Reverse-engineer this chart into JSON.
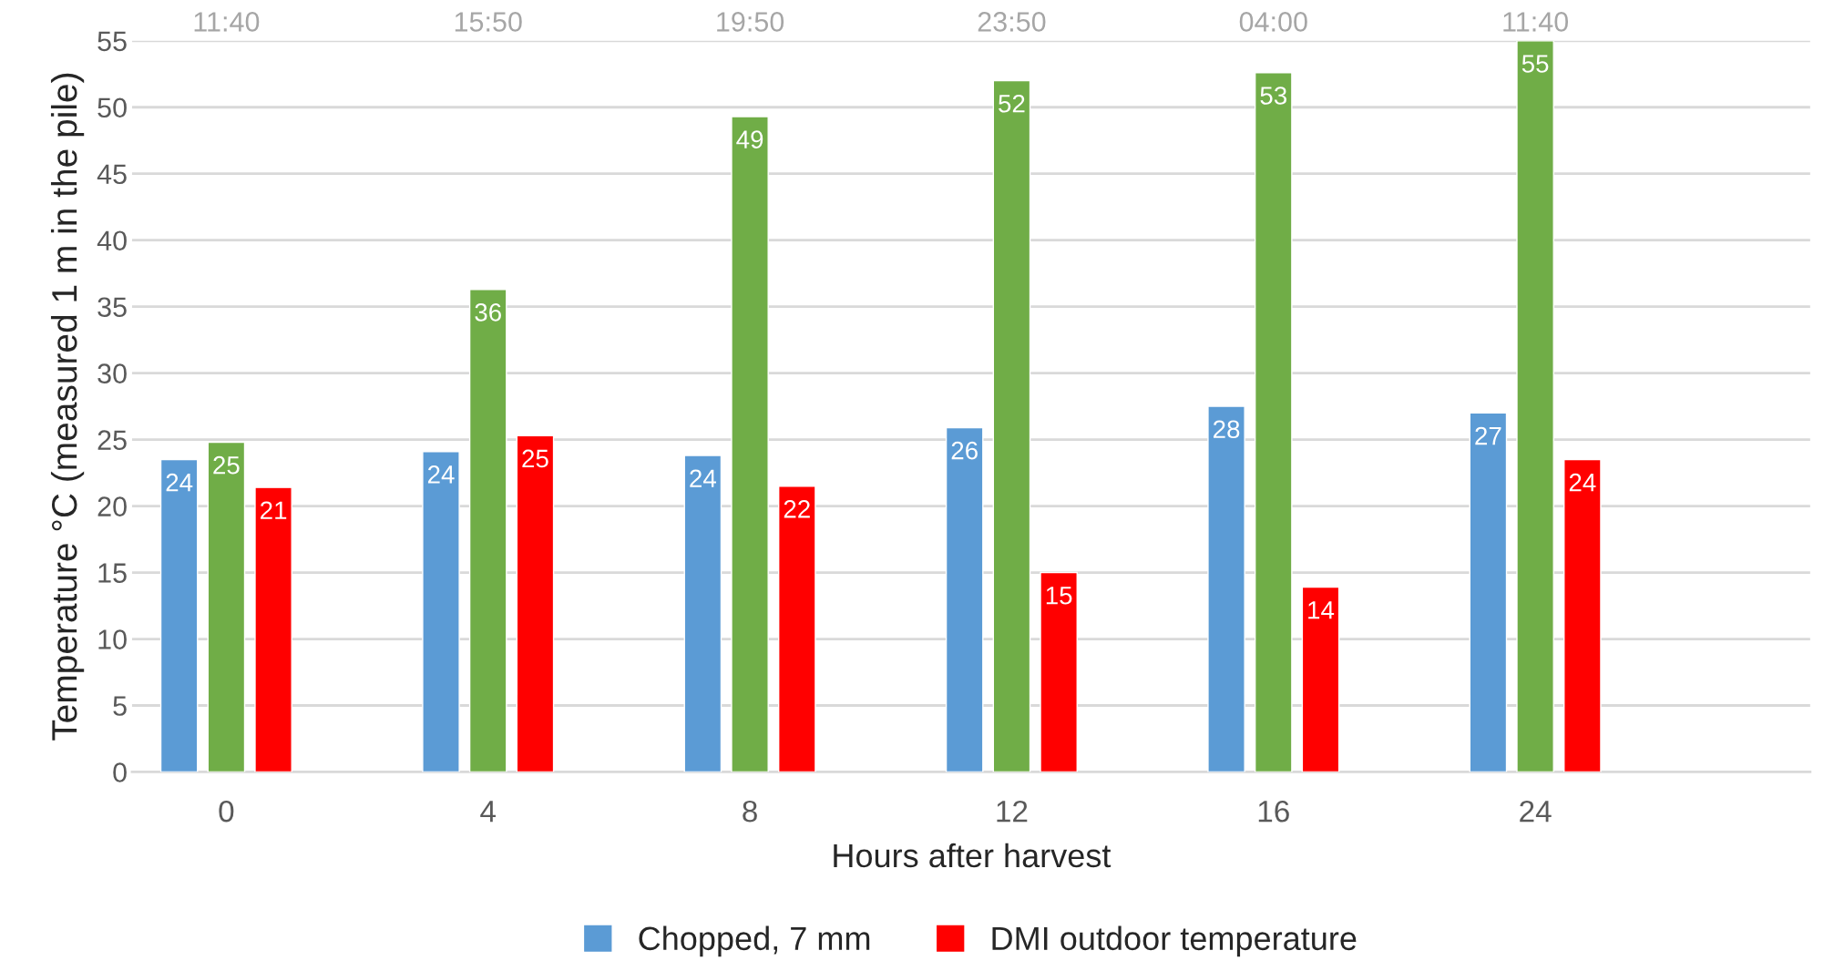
{
  "chart_data": {
    "type": "bar",
    "xlabel": "Hours after harvest",
    "ylabel": "Temperature °C (measured 1 m in the pile)",
    "categories": [
      "0",
      "4",
      "8",
      "12",
      "16",
      "24"
    ],
    "series": [
      {
        "name": "Chopped, 7 mm",
        "color": "#5b9bd5",
        "values": [
          23.5,
          24.1,
          23.8,
          25.9,
          27.5,
          27.0
        ],
        "value_labels": [
          "24",
          "24",
          "24",
          "26",
          "28",
          "27"
        ]
      },
      {
        "color": "#70ad47",
        "values": [
          24.8,
          36.3,
          49.3,
          52.0,
          52.6,
          55.0
        ],
        "value_labels": [
          "25",
          "36",
          "49",
          "52",
          "53",
          "55"
        ]
      },
      {
        "name": "DMI outdoor temperature",
        "color": "#ff0000",
        "values": [
          21.4,
          25.3,
          21.5,
          15.0,
          13.9,
          23.5
        ],
        "value_labels": [
          "21",
          "25",
          "22",
          "15",
          "14",
          "24"
        ]
      }
    ],
    "annotations": [
      "11:40",
      "15:50",
      "19:50",
      "23:50",
      "04:00",
      "11:40"
    ],
    "ylim": [
      0,
      55
    ],
    "yticks": [
      0,
      5,
      10,
      15,
      20,
      25,
      30,
      35,
      40,
      45,
      50,
      55
    ],
    "grid": "y",
    "legend": "bottom"
  }
}
